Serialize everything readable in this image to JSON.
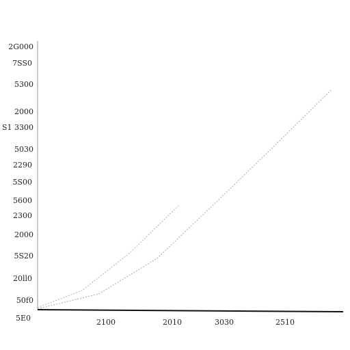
{
  "chart_data": {
    "type": "line",
    "y_axis_labels": [
      "2G000",
      "7SS0",
      "5300",
      "2000",
      "S1 3300",
      "5030",
      "2290",
      "5S00",
      "5600",
      "2300",
      "2000",
      "5S20",
      "20ll0",
      "50f0",
      "5E0"
    ],
    "x_axis_labels": [
      "2100",
      "2010",
      "3030",
      "2510"
    ],
    "xlim": [
      0,
      100
    ],
    "ylim": [
      0,
      100
    ],
    "series": [
      {
        "x": [
          0,
          14.6,
          30.3,
          46.5
        ],
        "values": [
          0.8,
          7.1,
          21.1,
          38.9
        ],
        "color": "#b0b0b0"
      },
      {
        "x": [
          0,
          20.2,
          39.3,
          59.6,
          77.5,
          96.6
        ],
        "values": [
          0.3,
          5.9,
          19.1,
          41.0,
          60.6,
          81.9
        ],
        "color": "#a8a8a8"
      }
    ]
  }
}
